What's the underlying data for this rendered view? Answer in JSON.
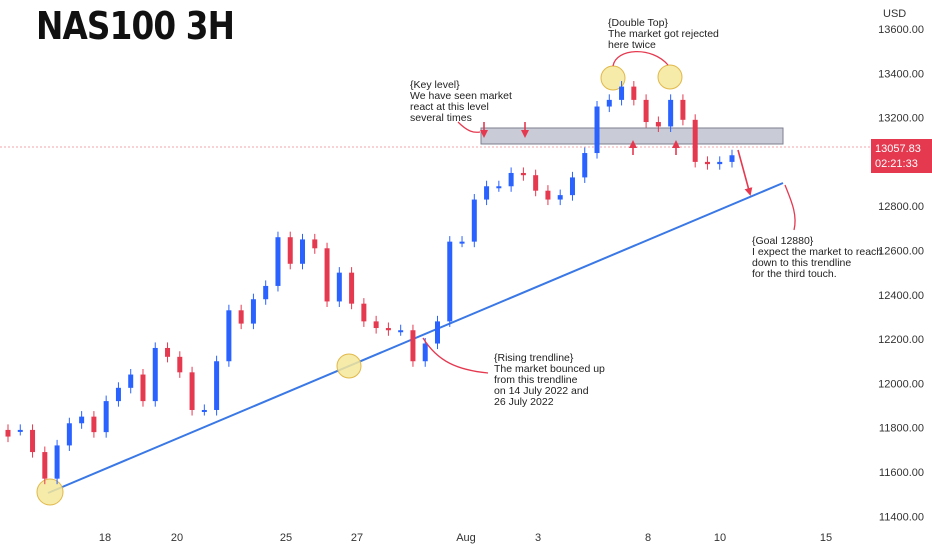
{
  "chart_data": {
    "type": "candlestick",
    "title": "NAS100 3H",
    "currency": "USD",
    "x_ticks": [
      "18",
      "20",
      "25",
      "27",
      "Aug",
      "3",
      "8",
      "10",
      "15"
    ],
    "y_ticks": [
      11400,
      11600,
      11800,
      12000,
      12200,
      12400,
      12600,
      12800,
      13000,
      13200,
      13400,
      13600
    ],
    "y_tick_labels": [
      "11400.00",
      "11600.00",
      "11800.00",
      "12000.00",
      "12200.00",
      "12400.00",
      "12600.00",
      "12800.00",
      "13000.00",
      "13200.00",
      "13400.00",
      "13600.00"
    ],
    "ylim": [
      11370,
      13690
    ],
    "current_price": "13057.83",
    "countdown": "02:21:33",
    "series": [
      {
        "name": "close",
        "values": [
          11760,
          11790,
          11690,
          11570,
          11720,
          11820,
          11850,
          11780,
          11920,
          11980,
          12040,
          11920,
          12160,
          12120,
          12050,
          11880,
          11880,
          12100,
          12330,
          12270,
          12380,
          12440,
          12660,
          12540,
          12650,
          12610,
          12370,
          12500,
          12360,
          12280,
          12250,
          12240,
          12240,
          12100,
          12180,
          12280,
          12640,
          12640,
          12830,
          12890,
          12890,
          12950,
          12940,
          12870,
          12830,
          12850,
          12930,
          13040,
          13250,
          13280,
          13340,
          13280,
          13180,
          13160,
          13280,
          13190,
          13000,
          12990,
          13000,
          13030
        ]
      },
      {
        "name": "open",
        "values": [
          11790,
          11790,
          11790,
          11690,
          11570,
          11720,
          11820,
          11850,
          11780,
          11920,
          11980,
          12040,
          11920,
          12160,
          12120,
          12050,
          11880,
          11880,
          12100,
          12330,
          12270,
          12380,
          12440,
          12660,
          12540,
          12650,
          12610,
          12370,
          12500,
          12360,
          12280,
          12250,
          12240,
          12240,
          12100,
          12180,
          12280,
          12640,
          12640,
          12830,
          12890,
          12890,
          12950,
          12940,
          12870,
          12830,
          12850,
          12930,
          13040,
          13250,
          13280,
          13340,
          13280,
          13180,
          13160,
          13280,
          13190,
          13000,
          12990,
          13000
        ]
      }
    ],
    "key_level_zone": [
      13080,
      13160
    ],
    "trendline": {
      "from": 11490,
      "to": 12900
    },
    "annotations": [
      "{Key level}",
      "We have seen market",
      "react at this level",
      "several times",
      "{Double Top}",
      "The market got rejected",
      "here twice",
      "{Goal 12880}",
      "I expect the market to reach",
      "down to this trendline",
      "for the third touch.",
      "{Rising trendline}",
      "The market bounced up",
      " from this trendline",
      "on 14 July 2022 and",
      "26 July 2022"
    ],
    "colors": {
      "up": "#2962ff",
      "down": "#e53950",
      "trendline": "#3a78e6",
      "zone": "#b7b9c9",
      "highlight": "#f6e79a",
      "arrow": "#e53950",
      "price_line": "#f3a4ad"
    }
  }
}
